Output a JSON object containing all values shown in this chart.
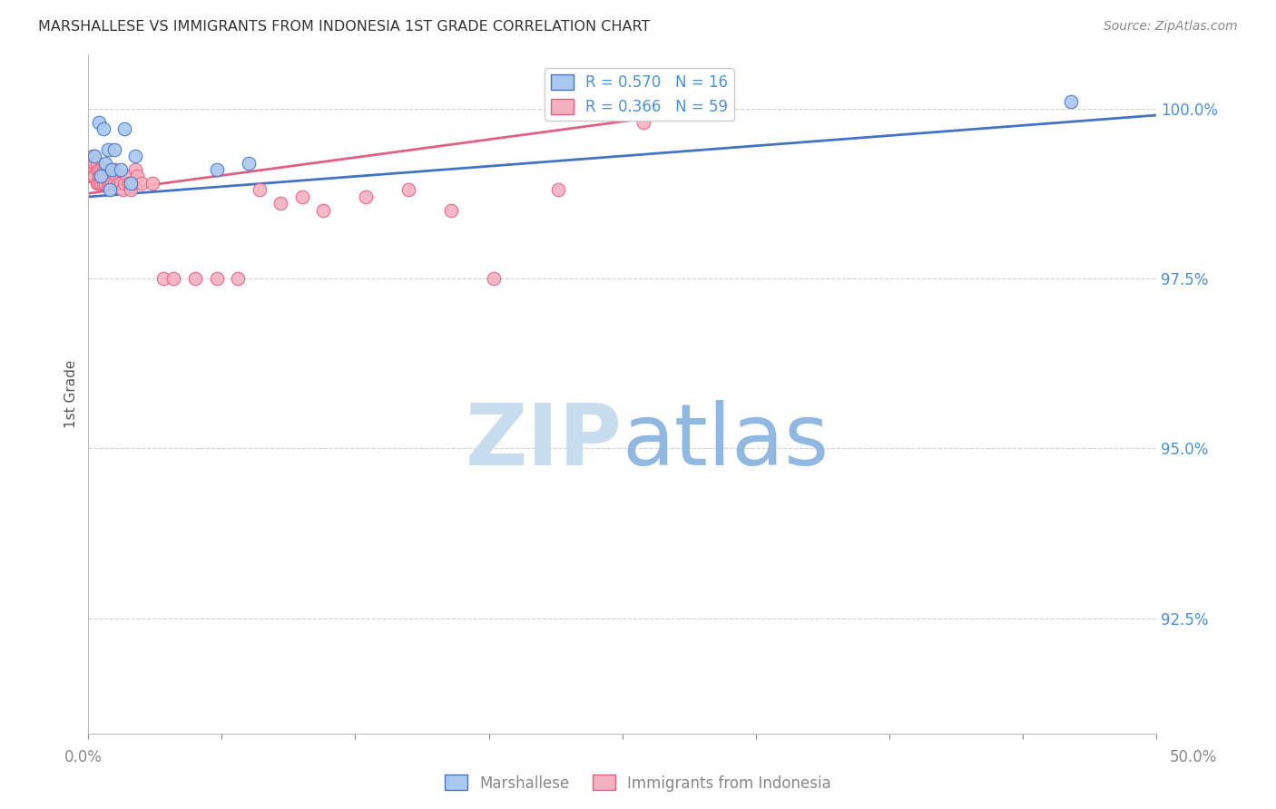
{
  "title": "MARSHALLESE VS IMMIGRANTS FROM INDONESIA 1ST GRADE CORRELATION CHART",
  "source": "Source: ZipAtlas.com",
  "ylabel": "1st Grade",
  "y_ticks": [
    0.925,
    0.95,
    0.975,
    1.0
  ],
  "y_tick_labels": [
    "92.5%",
    "95.0%",
    "97.5%",
    "100.0%"
  ],
  "xlim": [
    0.0,
    0.5
  ],
  "ylim": [
    0.908,
    1.008
  ],
  "legend_blue_r": "R = 0.570",
  "legend_blue_n": "N = 16",
  "legend_pink_r": "R = 0.366",
  "legend_pink_n": "N = 59",
  "blue_scatter_x": [
    0.003,
    0.005,
    0.006,
    0.007,
    0.008,
    0.009,
    0.01,
    0.011,
    0.012,
    0.015,
    0.017,
    0.02,
    0.022,
    0.06,
    0.075,
    0.46
  ],
  "blue_scatter_y": [
    0.993,
    0.998,
    0.99,
    0.997,
    0.992,
    0.994,
    0.988,
    0.991,
    0.994,
    0.991,
    0.997,
    0.989,
    0.993,
    0.991,
    0.992,
    1.001
  ],
  "pink_scatter_x": [
    0.001,
    0.001,
    0.002,
    0.002,
    0.002,
    0.003,
    0.003,
    0.003,
    0.004,
    0.004,
    0.004,
    0.005,
    0.005,
    0.005,
    0.006,
    0.006,
    0.006,
    0.007,
    0.007,
    0.007,
    0.008,
    0.008,
    0.008,
    0.009,
    0.009,
    0.01,
    0.01,
    0.011,
    0.011,
    0.012,
    0.012,
    0.013,
    0.014,
    0.015,
    0.016,
    0.017,
    0.018,
    0.019,
    0.02,
    0.021,
    0.022,
    0.023,
    0.025,
    0.03,
    0.035,
    0.04,
    0.05,
    0.06,
    0.07,
    0.08,
    0.09,
    0.1,
    0.11,
    0.13,
    0.15,
    0.17,
    0.19,
    0.22,
    0.26
  ],
  "pink_scatter_y": [
    0.992,
    0.99,
    0.993,
    0.991,
    0.99,
    0.991,
    0.99,
    0.992,
    0.991,
    0.989,
    0.992,
    0.99,
    0.989,
    0.991,
    0.99,
    0.989,
    0.991,
    0.99,
    0.989,
    0.991,
    0.989,
    0.991,
    0.99,
    0.99,
    0.989,
    0.989,
    0.991,
    0.99,
    0.989,
    0.991,
    0.989,
    0.99,
    0.989,
    0.989,
    0.988,
    0.989,
    0.99,
    0.989,
    0.988,
    0.989,
    0.991,
    0.99,
    0.989,
    0.989,
    0.975,
    0.975,
    0.975,
    0.975,
    0.975,
    0.988,
    0.986,
    0.987,
    0.985,
    0.987,
    0.988,
    0.985,
    0.975,
    0.988,
    0.998
  ],
  "blue_line_x": [
    0.0,
    0.5
  ],
  "blue_line_y": [
    0.987,
    0.999
  ],
  "pink_line_x": [
    0.0,
    0.26
  ],
  "pink_line_y": [
    0.9875,
    0.9985
  ],
  "blue_color": "#A8C8F0",
  "pink_color": "#F5B0C0",
  "blue_line_color": "#4472C4",
  "pink_line_color": "#E06080",
  "grid_color": "#D0D0D0",
  "bg_color": "#FFFFFF",
  "title_color": "#333333",
  "axis_color": "#4A90D9",
  "tick_color": "#888888",
  "source_color": "#888888",
  "watermark_zip_color": "#C8DCF0",
  "watermark_atlas_color": "#90B8E0"
}
